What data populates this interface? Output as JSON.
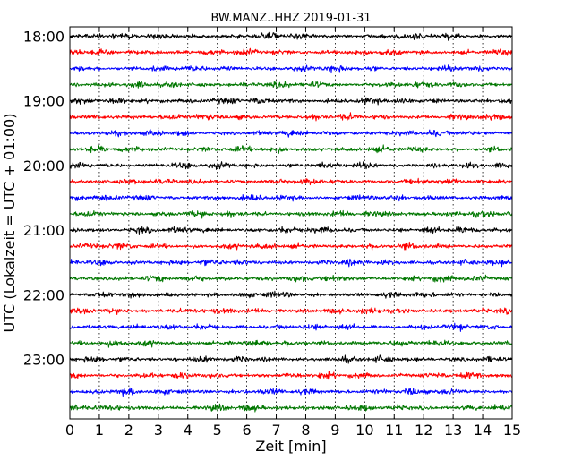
{
  "chart_data": {
    "type": "line",
    "title": "BW.MANZ..HHZ 2019-01-31",
    "xlabel": "Zeit  [min]",
    "ylabel": "UTC (Lokalzeit = UTC + 01:00)",
    "xlim": [
      0,
      15
    ],
    "x_ticks": [
      "0",
      "1",
      "2",
      "3",
      "4",
      "5",
      "6",
      "7",
      "8",
      "9",
      "10",
      "11",
      "12",
      "13",
      "14",
      "15"
    ],
    "y_tick_labels": [
      "18:00",
      "19:00",
      "20:00",
      "21:00",
      "22:00",
      "23:00"
    ],
    "vertical_grid": "dotted",
    "trace_interval_minutes": 15,
    "trace_start": "18:00",
    "trace_count": 24,
    "trace_colors": [
      "#000000",
      "#ff0000",
      "#0000ff",
      "#007700"
    ]
  }
}
